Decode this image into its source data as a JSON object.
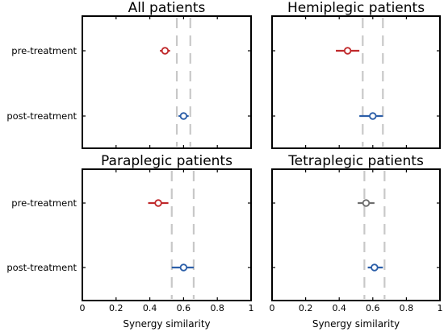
{
  "chart_data": [
    {
      "type": "scatter",
      "title": "All patients",
      "categories": [
        "pre-treatment",
        "post-treatment"
      ],
      "series": [
        {
          "category": "pre-treatment",
          "mean": 0.49,
          "ci": [
            0.46,
            0.52
          ],
          "color": "#c0292b"
        },
        {
          "category": "post-treatment",
          "mean": 0.6,
          "ci": [
            0.57,
            0.63
          ],
          "color": "#2b5ea8"
        }
      ],
      "reference_lines": [
        0.56,
        0.64
      ],
      "xlim": [
        0,
        1
      ],
      "xticks": [
        "0",
        "0.2",
        "0.4",
        "0.6",
        "0.8",
        "1"
      ],
      "xlabel": "",
      "show_xticks": false
    },
    {
      "type": "scatter",
      "title": "Hemiplegic patients",
      "categories": [
        "pre-treatment",
        "post-treatment"
      ],
      "series": [
        {
          "category": "pre-treatment",
          "mean": 0.45,
          "ci": [
            0.38,
            0.52
          ],
          "color": "#c0292b"
        },
        {
          "category": "post-treatment",
          "mean": 0.6,
          "ci": [
            0.52,
            0.66
          ],
          "color": "#2b5ea8"
        }
      ],
      "reference_lines": [
        0.54,
        0.66
      ],
      "xlim": [
        0,
        1
      ],
      "xticks": [
        "0",
        "0.2",
        "0.4",
        "0.6",
        "0.8",
        "1"
      ],
      "xlabel": "",
      "show_xticks": false
    },
    {
      "type": "scatter",
      "title": "Paraplegic patients",
      "categories": [
        "pre-treatment",
        "post-treatment"
      ],
      "series": [
        {
          "category": "pre-treatment",
          "mean": 0.45,
          "ci": [
            0.39,
            0.51
          ],
          "color": "#c0292b"
        },
        {
          "category": "post-treatment",
          "mean": 0.6,
          "ci": [
            0.53,
            0.66
          ],
          "color": "#2b5ea8"
        }
      ],
      "reference_lines": [
        0.53,
        0.66
      ],
      "xlim": [
        0,
        1
      ],
      "xticks": [
        "0",
        "0.2",
        "0.4",
        "0.6",
        "0.8",
        "1"
      ],
      "xlabel": "Synergy similarity",
      "show_xticks": true
    },
    {
      "type": "scatter",
      "title": "Tetraplegic patients",
      "categories": [
        "pre-treatment",
        "post-treatment"
      ],
      "series": [
        {
          "category": "pre-treatment",
          "mean": 0.56,
          "ci": [
            0.51,
            0.61
          ],
          "color": "#6e6e6e"
        },
        {
          "category": "post-treatment",
          "mean": 0.61,
          "ci": [
            0.57,
            0.66
          ],
          "color": "#2b5ea8"
        }
      ],
      "reference_lines": [
        0.55,
        0.67
      ],
      "xlim": [
        0,
        1
      ],
      "xticks": [
        "0",
        "0.2",
        "0.4",
        "0.6",
        "0.8",
        "1"
      ],
      "xlabel": "Synergy similarity",
      "show_xticks": true
    }
  ]
}
